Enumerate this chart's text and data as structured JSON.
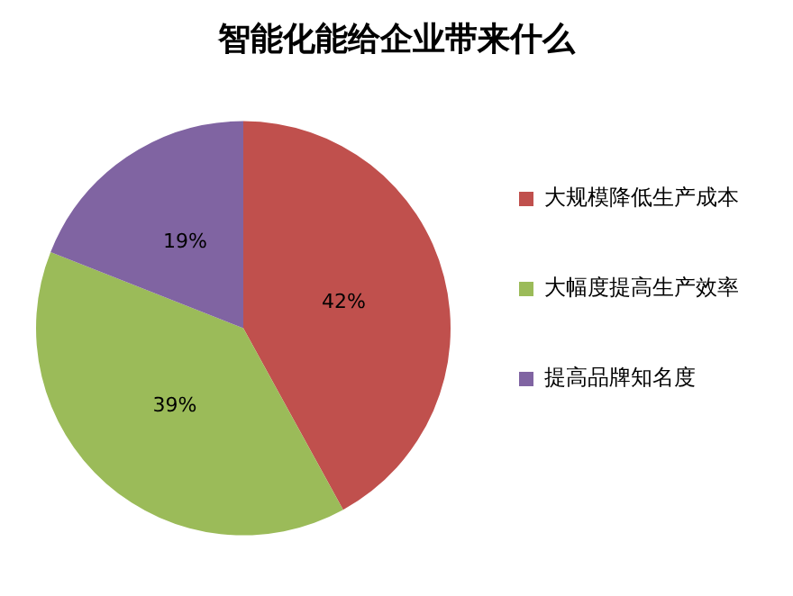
{
  "chart_data": {
    "type": "pie",
    "title": "智能化能给企业带来什么",
    "categories": [
      "大规模降低生产成本",
      "大幅度提高生产效率",
      "提高品牌知名度"
    ],
    "values": [
      42,
      39,
      19
    ],
    "colors": [
      "#c0504d",
      "#9bbb59",
      "#8064a2"
    ],
    "value_labels": [
      "42%",
      "39%",
      "19%"
    ],
    "legend": "right"
  }
}
